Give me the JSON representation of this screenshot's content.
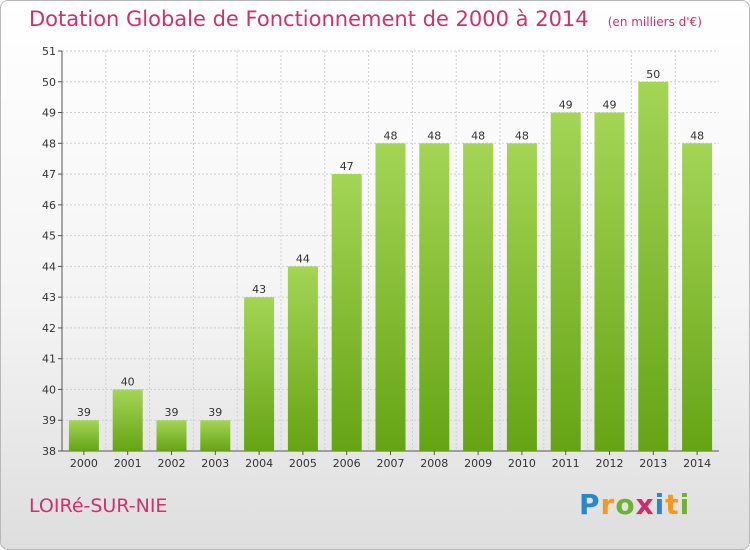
{
  "title": "Dotation Globale de Fonctionnement de 2000 à 2014",
  "unit": "(en milliers d'€)",
  "commune": "LOIRé-SUR-NIE",
  "logo": {
    "text": "Proxiti",
    "letters": [
      {
        "char": "P",
        "color": "#2a87c9"
      },
      {
        "char": "r",
        "color": "#f39a1e"
      },
      {
        "char": "o",
        "color": "#6bb42f"
      },
      {
        "char": "x",
        "color": "#d8276a"
      },
      {
        "char": "i",
        "color": "#2a87c9"
      },
      {
        "char": "t",
        "color": "#f39a1e"
      },
      {
        "char": "i",
        "color": "#6bb42f"
      }
    ]
  },
  "colors": {
    "bar_top": "#a4d556",
    "bar_bottom": "#66a414",
    "accent": "#d1306d",
    "grid": "#cfcfcf"
  },
  "chart_data": {
    "type": "bar",
    "title": "Dotation Globale de Fonctionnement de 2000 à 2014",
    "subtitle": "(en milliers d'€)",
    "categories": [
      "2000",
      "2001",
      "2002",
      "2003",
      "2004",
      "2005",
      "2006",
      "2007",
      "2008",
      "2009",
      "2010",
      "2011",
      "2012",
      "2013",
      "2014"
    ],
    "values": [
      39,
      40,
      39,
      39,
      43,
      44,
      47,
      48,
      48,
      48,
      48,
      49,
      49,
      50,
      48
    ],
    "ylim": [
      38,
      51
    ],
    "yticks": [
      38,
      39,
      40,
      41,
      42,
      43,
      44,
      45,
      46,
      47,
      48,
      49,
      50,
      51
    ],
    "grid": true,
    "data_labels": true,
    "legend": "none"
  }
}
